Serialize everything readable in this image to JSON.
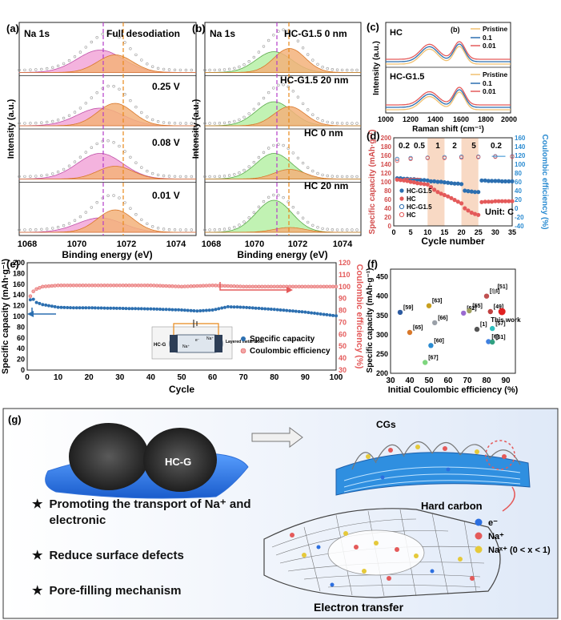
{
  "panels": {
    "a": {
      "letter": "(a)",
      "element": "Na 1s",
      "states": [
        "Full desodiation",
        "0.25 V",
        "0.08 V",
        "0.01 V"
      ],
      "xlabel": "Binding energy (eV)",
      "ylabel": "Intensity (a.u.)",
      "xticks": [
        "1068",
        "1070",
        "1072",
        "1074"
      ]
    },
    "b": {
      "letter": "(b)",
      "element": "Na 1s",
      "states": [
        "HC-G1.5 0 nm",
        "HC-G1.5 20 nm",
        "HC  0 nm",
        "HC  20 nm"
      ],
      "xlabel": "Binding energy (eV)",
      "ylabel": "Intensity (a.u.)",
      "xticks": [
        "1068",
        "1070",
        "1072",
        "1074"
      ]
    },
    "c": {
      "letter": "(c)",
      "top_label": "HC",
      "bottom_label": "HC-G1.5",
      "inner_mark": "(b)",
      "legend": [
        "Pristine",
        "0.1",
        "0.01"
      ],
      "xlabel": "Raman shift (cm⁻¹)",
      "ylabel": "Intensity (a.u.)",
      "xticks": [
        "1000",
        "1200",
        "1400",
        "1600",
        "1800",
        "2000"
      ]
    },
    "d": {
      "letter": "(d)",
      "xlabel": "Cycle number",
      "ylabel_left": "Specific capacity (mAh·g⁻¹)",
      "ylabel_right": "Coulombic efficiency (%)",
      "unit_note": "Unit: C",
      "rate_labels": [
        "0.2",
        "0.5",
        "1",
        "2",
        "5",
        "0.2"
      ],
      "legend": [
        "HC-G1.5",
        "HC",
        "HC-G1.5",
        "HC"
      ],
      "yticks_left": [
        "0",
        "20",
        "40",
        "60",
        "80",
        "100",
        "120",
        "140",
        "160",
        "180",
        "200"
      ],
      "yticks_right": [
        "-40",
        "-20",
        "0",
        "20",
        "40",
        "60",
        "80",
        "100",
        "120",
        "140",
        "160"
      ],
      "xticks": [
        "0",
        "5",
        "10",
        "15",
        "20",
        "25",
        "30",
        "35"
      ]
    },
    "e": {
      "letter": "(e)",
      "xlabel": "Cycle",
      "ylabel_left": "Specific capacity (mAh·g⁻¹)",
      "ylabel_right": "Coulombic efficiency (%)",
      "legend": [
        "Specific capacity",
        "Coulombic efficiency"
      ],
      "inset_labels": [
        "HC-G",
        "Na⁺",
        "Na⁺",
        "e⁻",
        "Layered metal oxide"
      ],
      "yticks_left": [
        "0",
        "20",
        "40",
        "60",
        "80",
        "100",
        "120",
        "140",
        "160",
        "180",
        "200"
      ],
      "yticks_right": [
        "30",
        "40",
        "50",
        "60",
        "70",
        "80",
        "90",
        "100",
        "110",
        "120"
      ],
      "xticks": [
        "0",
        "10",
        "20",
        "30",
        "40",
        "50",
        "60",
        "70",
        "80",
        "90",
        "100"
      ]
    },
    "f": {
      "letter": "(f)",
      "xlabel": "Initial Coulombic efficiency (%)",
      "ylabel": "Specific capacity (mAh·g⁻¹)",
      "this_work_label": "This work",
      "xticks": [
        "30",
        "40",
        "50",
        "60",
        "70",
        "80",
        "90"
      ],
      "yticks": [
        "200",
        "250",
        "300",
        "350",
        "400",
        "450"
      ]
    },
    "g": {
      "letter": "(g)",
      "material_label": "HC-G",
      "cgs_label": "CGs",
      "hard_carbon_label": "Hard carbon",
      "electron_transfer_label": "Electron transfer",
      "legend": [
        "e⁻",
        "Na⁺",
        "Naˣ⁺ (0 < x < 1)"
      ],
      "bullets": [
        "Promoting the transport of Na⁺ and electronic",
        "Reduce surface defects",
        "Pore-filling mechanism"
      ]
    }
  },
  "colors": {
    "pink": "#f2a6d8",
    "orange": "#f3b27a",
    "green": "#b6f0a6",
    "purple_line": "#b43cc8",
    "orange_line": "#e8891a",
    "blue": "#2c6fb0",
    "red": "#e45a5a",
    "teal": "#2a8bd1"
  },
  "chart_data": [
    {
      "id": "a",
      "type": "line",
      "title": "",
      "xlabel": "Binding energy (eV)",
      "ylabel": "Intensity (a.u.)",
      "xlim": [
        1068,
        1075
      ],
      "peaks": [
        {
          "state": "Full desodiation",
          "NaF_eV": 1071.2,
          "Na_eV": 1071.8
        },
        {
          "state": "0.25 V",
          "NaF_eV": 1071.2,
          "Na_eV": 1071.8
        },
        {
          "state": "0.08 V",
          "NaF_eV": 1071.2,
          "Na_eV": 1071.8
        },
        {
          "state": "0.01 V",
          "NaF_eV": 1071.2,
          "Na_eV": 1071.8
        }
      ]
    },
    {
      "id": "b",
      "type": "line",
      "title": "",
      "xlabel": "Binding energy (eV)",
      "ylabel": "Intensity (a.u.)",
      "xlim": [
        1068,
        1075
      ],
      "peaks": [
        {
          "state": "HC-G1.5 0 nm",
          "eV": [
            1071.1,
            1071.8
          ]
        },
        {
          "state": "HC-G1.5 20 nm",
          "eV": [
            1071.1,
            1071.8
          ]
        },
        {
          "state": "HC 0 nm",
          "eV": [
            1071.1,
            1071.8
          ]
        },
        {
          "state": "HC 20 nm",
          "eV": [
            1071.1,
            1071.8
          ]
        }
      ]
    },
    {
      "id": "c",
      "type": "line",
      "xlabel": "Raman shift (cm⁻¹)",
      "ylabel": "Intensity (a.u.)",
      "xlim": [
        1000,
        2000
      ],
      "series": [
        {
          "name": "Pristine",
          "D": 1350,
          "G": 1590
        },
        {
          "name": "0.1",
          "D": 1350,
          "G": 1590
        },
        {
          "name": "0.01",
          "D": 1350,
          "G": 1590
        }
      ]
    },
    {
      "id": "d",
      "type": "scatter",
      "xlabel": "Cycle number",
      "ylabel": "Specific capacity (mAh·g⁻¹)",
      "xlim": [
        0,
        35
      ],
      "ylim": [
        0,
        200
      ],
      "ylim_right": [
        -40,
        160
      ],
      "series": [
        {
          "name": "HC-G1.5",
          "axis": "left",
          "x": [
            1,
            2,
            3,
            4,
            5,
            6,
            7,
            8,
            9,
            10,
            11,
            12,
            13,
            14,
            15,
            16,
            17,
            18,
            19,
            20,
            21,
            22,
            23,
            24,
            25,
            26,
            27,
            28,
            29,
            30,
            31,
            32,
            33,
            34,
            35
          ],
          "values": [
            108,
            108,
            107,
            107,
            106,
            106,
            105,
            104,
            104,
            103,
            101,
            101,
            100,
            100,
            99,
            98,
            97,
            96,
            96,
            95,
            80,
            79,
            78,
            77,
            77,
            103,
            103,
            102,
            102,
            102,
            102,
            101,
            101,
            101,
            101
          ]
        },
        {
          "name": "HC",
          "axis": "left",
          "x": [
            1,
            2,
            3,
            4,
            5,
            6,
            7,
            8,
            9,
            10,
            11,
            12,
            13,
            14,
            15,
            16,
            17,
            18,
            19,
            20,
            21,
            22,
            23,
            24,
            25,
            26,
            27,
            28,
            29,
            30,
            31,
            32,
            33,
            34,
            35
          ],
          "values": [
            105,
            104,
            103,
            102,
            100,
            99,
            97,
            96,
            95,
            94,
            88,
            82,
            77,
            73,
            70,
            67,
            63,
            59,
            55,
            51,
            40,
            35,
            30,
            27,
            25,
            54,
            55,
            55,
            55,
            56,
            56,
            56,
            56,
            56,
            56
          ]
        },
        {
          "name": "HC-G1.5",
          "axis": "right",
          "x": [
            1,
            5,
            10,
            15,
            20,
            25,
            30,
            35
          ],
          "values": [
            112,
            114,
            115,
            116,
            117,
            117,
            118,
            118
          ]
        },
        {
          "name": "HC",
          "axis": "right",
          "x": [
            1,
            5,
            10,
            15,
            20,
            25,
            30,
            35
          ],
          "values": [
            108,
            112,
            114,
            114,
            115,
            116,
            117,
            117
          ]
        }
      ]
    },
    {
      "id": "e",
      "type": "scatter",
      "xlabel": "Cycle",
      "ylabel": "Specific capacity (mAh·g⁻¹)",
      "xlim": [
        0,
        100
      ],
      "ylim": [
        0,
        200
      ],
      "ylim_right": [
        30,
        120
      ],
      "series": [
        {
          "name": "Specific capacity",
          "axis": "left",
          "x": [
            1,
            2,
            3,
            5,
            10,
            15,
            20,
            30,
            40,
            50,
            55,
            60,
            65,
            70,
            80,
            90,
            100
          ],
          "values": [
            131,
            132,
            126,
            122,
            117,
            116,
            116,
            115,
            114,
            112,
            110,
            112,
            118,
            117,
            113,
            108,
            101
          ]
        },
        {
          "name": "Coulombic efficiency",
          "axis": "right",
          "x": [
            1,
            2,
            3,
            5,
            10,
            20,
            30,
            40,
            50,
            60,
            70,
            80,
            90,
            100
          ],
          "values": [
            92,
            96,
            98,
            100,
            101,
            101,
            101,
            101,
            100,
            101,
            100,
            100,
            100,
            100
          ]
        }
      ]
    },
    {
      "id": "f",
      "type": "scatter",
      "xlabel": "Initial Coulombic efficiency (%)",
      "ylabel": "Specific capacity (mAh·g⁻¹)",
      "xlim": [
        30,
        95
      ],
      "ylim": [
        200,
        470
      ],
      "points": [
        {
          "label": "[59]",
          "x": 35,
          "y": 358
        },
        {
          "label": "[65]",
          "x": 40,
          "y": 306
        },
        {
          "label": "[63]",
          "x": 50,
          "y": 375
        },
        {
          "label": "[66]",
          "x": 53,
          "y": 331
        },
        {
          "label": "[60]",
          "x": 51,
          "y": 272
        },
        {
          "label": "[67]",
          "x": 48,
          "y": 228
        },
        {
          "label": "[62]",
          "x": 68,
          "y": 356
        },
        {
          "label": "[55]",
          "x": 71,
          "y": 362
        },
        {
          "label": "[1]",
          "x": 75,
          "y": 314
        },
        {
          "label": "[64]",
          "x": 80,
          "y": 400
        },
        {
          "label": "[51]",
          "x": 84,
          "y": 412
        },
        {
          "label": "[49]",
          "x": 82,
          "y": 360
        },
        {
          "label": "[57]",
          "x": 83,
          "y": 316
        },
        {
          "label": "[6]",
          "x": 81,
          "y": 282
        },
        {
          "label": "[61]",
          "x": 83,
          "y": 281
        },
        {
          "label": "This work",
          "x": 88,
          "y": 360
        }
      ]
    }
  ]
}
